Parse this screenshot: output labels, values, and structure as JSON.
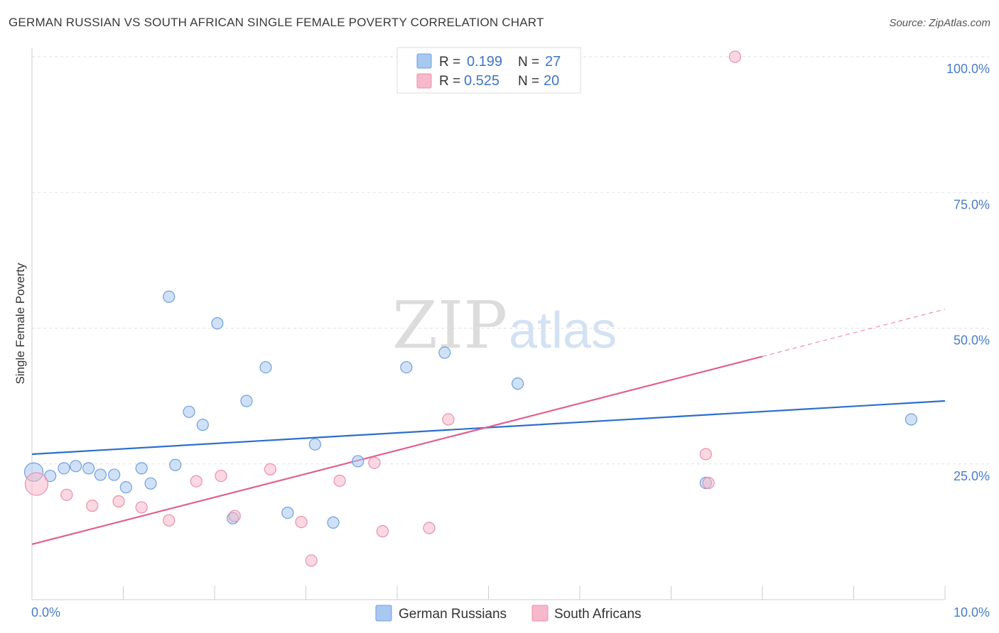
{
  "header": {
    "title": "GERMAN RUSSIAN VS SOUTH AFRICAN SINGLE FEMALE POVERTY CORRELATION CHART",
    "source": "Source: ZipAtlas.com"
  },
  "watermark": {
    "zip": "ZIP",
    "atlas": "atlas"
  },
  "legend": {
    "rows": [
      {
        "r_label": "R =",
        "r_value": "0.199",
        "n_label": "N =",
        "n_value": "27",
        "color": "#a9c8f0"
      },
      {
        "r_label": "R =",
        "r_value": "0.525",
        "n_label": "N =",
        "n_value": "20",
        "color": "#f7b8cb"
      }
    ]
  },
  "chart_data": {
    "type": "scatter",
    "title": "GERMAN RUSSIAN VS SOUTH AFRICAN SINGLE FEMALE POVERTY CORRELATION CHART",
    "xlabel": "",
    "ylabel": "Single Female Poverty",
    "xlim": [
      0,
      10
    ],
    "ylim": [
      0,
      100
    ],
    "x_ticks_labeled": [
      "0.0%",
      "10.0%"
    ],
    "y_ticks": [
      25,
      50,
      75,
      100
    ],
    "y_tick_labels": [
      "25.0%",
      "50.0%",
      "75.0%",
      "100.0%"
    ],
    "grid": true,
    "legend_position": "top-center",
    "series": [
      {
        "name": "German Russians",
        "color": "#a9c8f0",
        "edge_color": "#6f9fdc",
        "line_color": "#2c6fcd",
        "trend": {
          "x": [
            0,
            10
          ],
          "y": [
            26.8,
            36.6
          ]
        },
        "points": [
          [
            0.02,
            23.5
          ],
          [
            0.2,
            22.8
          ],
          [
            0.35,
            24.2
          ],
          [
            0.48,
            24.6
          ],
          [
            0.62,
            24.2
          ],
          [
            0.75,
            23.0
          ],
          [
            0.9,
            23.0
          ],
          [
            1.03,
            20.7
          ],
          [
            1.2,
            24.2
          ],
          [
            1.3,
            21.4
          ],
          [
            1.5,
            55.8
          ],
          [
            1.57,
            24.8
          ],
          [
            1.72,
            34.6
          ],
          [
            1.87,
            32.2
          ],
          [
            2.03,
            50.9
          ],
          [
            2.2,
            15.0
          ],
          [
            2.35,
            36.6
          ],
          [
            2.56,
            42.8
          ],
          [
            2.8,
            16.0
          ],
          [
            3.1,
            28.6
          ],
          [
            3.3,
            14.2
          ],
          [
            3.57,
            25.5
          ],
          [
            4.1,
            42.8
          ],
          [
            4.52,
            45.5
          ],
          [
            5.32,
            39.8
          ],
          [
            7.38,
            21.5
          ],
          [
            9.63,
            33.2
          ]
        ]
      },
      {
        "name": "South Africans",
        "color": "#f7b8cb",
        "edge_color": "#e98fab",
        "line_color": "#e0608c",
        "trend": {
          "x": [
            0,
            8.0
          ],
          "y": [
            10.2,
            44.8
          ]
        },
        "trend_dashed": {
          "x": [
            8.0,
            10
          ],
          "y": [
            44.8,
            53.5
          ]
        },
        "points": [
          [
            0.05,
            21.3
          ],
          [
            0.38,
            19.3
          ],
          [
            0.66,
            17.3
          ],
          [
            0.95,
            18.1
          ],
          [
            1.2,
            17.0
          ],
          [
            1.5,
            14.6
          ],
          [
            1.8,
            21.8
          ],
          [
            2.07,
            22.8
          ],
          [
            2.22,
            15.4
          ],
          [
            2.61,
            24.0
          ],
          [
            2.95,
            14.3
          ],
          [
            3.06,
            7.2
          ],
          [
            3.37,
            21.9
          ],
          [
            3.75,
            25.2
          ],
          [
            3.84,
            12.6
          ],
          [
            4.35,
            13.2
          ],
          [
            4.56,
            33.2
          ],
          [
            7.38,
            26.8
          ],
          [
            7.41,
            21.5
          ],
          [
            7.7,
            100.0
          ]
        ]
      }
    ]
  },
  "bottom_legend": [
    {
      "label": "German Russians",
      "color": "#a9c8f0"
    },
    {
      "label": "South Africans",
      "color": "#f7b8cb"
    }
  ]
}
